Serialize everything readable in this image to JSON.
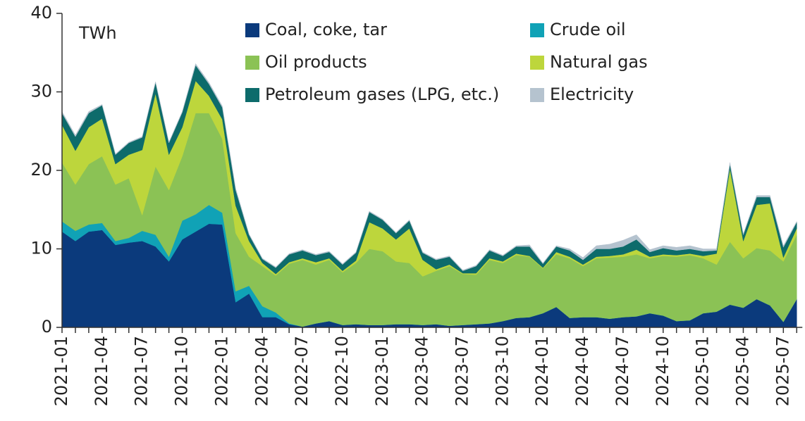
{
  "chart_data": {
    "type": "area",
    "annotations": [
      "TWh"
    ],
    "categories": [
      "2021-01",
      null,
      null,
      "2021-04",
      null,
      null,
      "2021-07",
      null,
      null,
      "2021-10",
      null,
      null,
      "2022-01",
      null,
      null,
      "2022-04",
      null,
      null,
      "2022-07",
      null,
      null,
      "2022-10",
      null,
      null,
      "2023-01",
      null,
      null,
      "2023-04",
      null,
      null,
      "2023-07",
      null,
      null,
      "2023-10",
      null,
      null,
      "2024-01",
      null,
      null,
      "2024-04",
      null,
      null,
      "2024-07",
      null,
      null,
      "2024-10",
      null,
      null,
      "2025-01",
      null,
      null,
      "2025-04",
      null,
      null,
      "2025-07",
      null
    ],
    "stacked": true,
    "ylim": [
      0,
      40
    ],
    "yticks": [
      0,
      10,
      20,
      30,
      40
    ],
    "grid": false,
    "legend": "top",
    "series": [
      {
        "name": "Coal, coke, tar",
        "color": "#0b3a7c",
        "values": [
          12.2,
          11.0,
          12.2,
          12.4,
          10.5,
          10.8,
          11.0,
          10.3,
          8.4,
          11.2,
          12.2,
          13.2,
          13.1,
          3.2,
          4.3,
          1.3,
          1.3,
          0.4,
          0.1,
          0.5,
          0.8,
          0.3,
          0.4,
          0.3,
          0.3,
          0.4,
          0.4,
          0.3,
          0.4,
          0.2,
          0.3,
          0.4,
          0.5,
          0.8,
          1.2,
          1.3,
          1.8,
          2.6,
          1.2,
          1.3,
          1.3,
          1.1,
          1.3,
          1.4,
          1.8,
          1.5,
          0.8,
          0.9,
          1.8,
          2.0,
          2.9,
          2.5,
          3.6,
          2.8,
          0.7,
          3.6
        ]
      },
      {
        "name": "Crude oil",
        "color": "#10a2b6",
        "values": [
          1.3,
          1.3,
          0.9,
          0.9,
          0.5,
          0.6,
          1.3,
          1.5,
          0.6,
          2.4,
          2.2,
          2.4,
          1.5,
          1.4,
          1.0,
          1.4,
          0.6,
          0.1,
          0,
          0,
          0,
          0,
          0,
          0,
          0,
          0,
          0,
          0,
          0,
          0,
          0,
          0,
          0,
          0,
          0,
          0,
          0,
          0,
          0,
          0,
          0,
          0,
          0,
          0,
          0,
          0,
          0,
          0,
          0,
          0,
          0,
          0,
          0,
          0,
          0,
          0
        ]
      },
      {
        "name": "Oil products",
        "color": "#8bc255",
        "values": [
          7.5,
          5.9,
          7.7,
          8.5,
          7.2,
          7.6,
          2.0,
          8.7,
          8.5,
          8.2,
          12.9,
          11.7,
          9.4,
          7.4,
          3.7,
          5.1,
          4.7,
          7.6,
          8.5,
          7.5,
          7.8,
          6.7,
          7.8,
          9.7,
          9.4,
          8.0,
          7.8,
          6.2,
          6.8,
          7.6,
          6.5,
          6.3,
          8.1,
          7.4,
          8.0,
          7.7,
          5.7,
          6.7,
          7.6,
          6.5,
          7.5,
          7.8,
          7.7,
          7.9,
          7.0,
          7.6,
          8.2,
          8.3,
          7.0,
          6.0,
          8.0,
          6.3,
          6.5,
          7.0,
          7.7,
          8.2
        ]
      },
      {
        "name": "Natural gas",
        "color": "#bdd63c",
        "values": [
          4.8,
          4.3,
          4.7,
          4.8,
          2.6,
          3.0,
          8.3,
          9.3,
          4.5,
          3.7,
          4.1,
          2.2,
          2.5,
          3.5,
          2.0,
          0.4,
          0.2,
          0.2,
          0.2,
          0.3,
          0.2,
          0.2,
          0.3,
          3.4,
          2.9,
          2.8,
          4.4,
          2.1,
          0.2,
          0.2,
          0.1,
          0.2,
          0.2,
          0.2,
          0.2,
          0.1,
          0.1,
          0.3,
          0.2,
          0.2,
          0.2,
          0.2,
          0.3,
          0.6,
          0.2,
          0.2,
          0.2,
          0.2,
          0.3,
          1.4,
          9.3,
          2.2,
          5.5,
          6.0,
          0.5,
          0.8
        ]
      },
      {
        "name": "Petroleum gases (LPG, etc.)",
        "color": "#0d6b6b",
        "values": [
          1.5,
          1.8,
          1.8,
          1.7,
          1.2,
          1.5,
          1.6,
          1.4,
          1.5,
          1.9,
          2.0,
          1.5,
          1.5,
          2.0,
          0.8,
          0.5,
          0.8,
          1.0,
          1.0,
          0.9,
          0.8,
          0.8,
          1.0,
          1.3,
          1.1,
          0.8,
          1.0,
          0.9,
          1.2,
          1.0,
          0.3,
          0.9,
          1.0,
          0.7,
          0.9,
          1.2,
          0.5,
          0.7,
          0.8,
          0.6,
          1.0,
          0.9,
          1.0,
          1.3,
          0.6,
          0.8,
          0.6,
          0.6,
          0.6,
          0.4,
          0.6,
          0.8,
          1.0,
          0.8,
          1.3,
          0.8
        ]
      },
      {
        "name": "Electricity",
        "color": "#b5c3cf",
        "values": [
          0.2,
          0.2,
          0.2,
          0.1,
          0.1,
          0.1,
          0.1,
          0.1,
          0.1,
          0.1,
          0.2,
          0.2,
          0.2,
          0.2,
          0.1,
          0.1,
          0.1,
          0.1,
          0.1,
          0.1,
          0.1,
          0.1,
          0.1,
          0.1,
          0.1,
          0.1,
          0.1,
          0.1,
          0.1,
          0.1,
          0.1,
          0.1,
          0.1,
          0.1,
          0.1,
          0.2,
          0.1,
          0.1,
          0.2,
          0.3,
          0.4,
          0.6,
          0.8,
          0.6,
          0.3,
          0.3,
          0.4,
          0.4,
          0.3,
          0.2,
          0.2,
          0.1,
          0.2,
          0.2,
          0.2,
          0.1
        ]
      }
    ]
  }
}
